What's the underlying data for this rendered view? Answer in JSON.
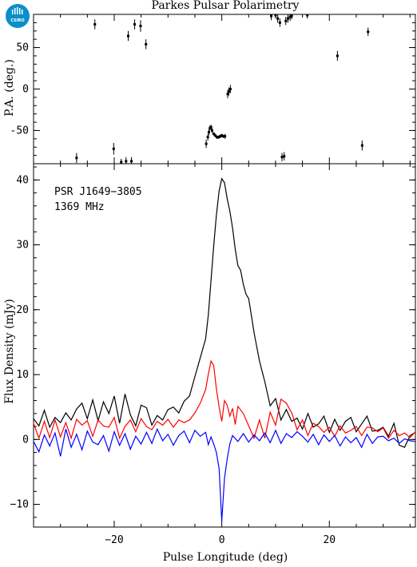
{
  "title": "Parkes Pulsar Polarimetry",
  "logo": {
    "text": "CSIRO",
    "color": "#0a8fc9",
    "icon": "csiro-logo-icon"
  },
  "chart_data": [
    {
      "id": "pa",
      "type": "scatter",
      "ylabel": "P.A. (deg.)",
      "xlim": [
        -35,
        36
      ],
      "ylim": [
        -90,
        90
      ],
      "yticks": [
        -50,
        0,
        50
      ],
      "ytick_labels": [
        "-50",
        "0",
        "50"
      ],
      "xticks": [
        -20,
        0,
        20
      ],
      "error_bar_color": "#000000",
      "points": [
        {
          "x": -27,
          "y": -83,
          "err": 6
        },
        {
          "x": -23.6,
          "y": 78,
          "err": 6
        },
        {
          "x": -20.1,
          "y": -72,
          "err": 7
        },
        {
          "x": -18.7,
          "y": -88,
          "err": 4
        },
        {
          "x": -17.8,
          "y": -87,
          "err": 5
        },
        {
          "x": -17.4,
          "y": 64,
          "err": 6
        },
        {
          "x": -16.8,
          "y": -87,
          "err": 5
        },
        {
          "x": -16.2,
          "y": 78,
          "err": 6
        },
        {
          "x": -15.1,
          "y": 76,
          "err": 7
        },
        {
          "x": -14.1,
          "y": 54,
          "err": 6
        },
        {
          "x": -2.9,
          "y": -66,
          "err": 5
        },
        {
          "x": -2.6,
          "y": -58,
          "err": 4
        },
        {
          "x": -2.4,
          "y": -52,
          "err": 4
        },
        {
          "x": -2.2,
          "y": -47,
          "err": 3
        },
        {
          "x": -2.0,
          "y": -46,
          "err": 3
        },
        {
          "x": -1.8,
          "y": -50,
          "err": 3
        },
        {
          "x": -1.5,
          "y": -54,
          "err": 2
        },
        {
          "x": -1.2,
          "y": -56,
          "err": 2
        },
        {
          "x": -0.9,
          "y": -58,
          "err": 2
        },
        {
          "x": -0.6,
          "y": -58,
          "err": 2
        },
        {
          "x": -0.3,
          "y": -57,
          "err": 2
        },
        {
          "x": 0.0,
          "y": -56,
          "err": 2
        },
        {
          "x": 0.3,
          "y": -57,
          "err": 2
        },
        {
          "x": 0.6,
          "y": -57,
          "err": 3
        },
        {
          "x": 1.1,
          "y": -6,
          "err": 5
        },
        {
          "x": 1.3,
          "y": -3,
          "err": 5
        },
        {
          "x": 1.6,
          "y": 0,
          "err": 5
        },
        {
          "x": 9.2,
          "y": 88,
          "err": 5
        },
        {
          "x": 10.0,
          "y": 89,
          "err": 4
        },
        {
          "x": 10.4,
          "y": 85,
          "err": 5
        },
        {
          "x": 10.8,
          "y": 80,
          "err": 5
        },
        {
          "x": 11.2,
          "y": -82,
          "err": 5
        },
        {
          "x": 11.6,
          "y": -81,
          "err": 5
        },
        {
          "x": 11.9,
          "y": 82,
          "err": 5
        },
        {
          "x": 12.3,
          "y": 85,
          "err": 5
        },
        {
          "x": 12.7,
          "y": 87,
          "err": 5
        },
        {
          "x": 13.0,
          "y": 88,
          "err": 4
        },
        {
          "x": 15.9,
          "y": 89,
          "err": 4
        },
        {
          "x": 21.5,
          "y": 40,
          "err": 6
        },
        {
          "x": 26.1,
          "y": -68,
          "err": 6
        },
        {
          "x": 27.2,
          "y": 69,
          "err": 5
        }
      ]
    },
    {
      "id": "flux",
      "type": "line",
      "xlabel": "Pulse Longitude (deg)",
      "ylabel": "Flux Density (mJy)",
      "xlim": [
        -35,
        36
      ],
      "ylim": [
        -13.5,
        42.5
      ],
      "xticks": [
        -20,
        0,
        20
      ],
      "xtick_labels": [
        "−20",
        "0",
        "20"
      ],
      "yticks": [
        -10,
        0,
        10,
        20,
        30,
        40
      ],
      "ytick_labels": [
        "−10",
        "0",
        "10",
        "20",
        "30",
        "40"
      ],
      "annotations": [
        "PSR J1649−3805",
        "1369 MHz"
      ],
      "series": [
        {
          "color": "#000000",
          "x": [
            -35,
            -34,
            -33,
            -32,
            -31,
            -30,
            -29,
            -28,
            -27,
            -26,
            -25,
            -24,
            -23,
            -22,
            -21,
            -20,
            -19,
            -18,
            -17,
            -16,
            -15,
            -14,
            -13,
            -12,
            -11,
            -10,
            -9,
            -8,
            -7,
            -6,
            -5,
            -4,
            -3,
            -2.5,
            -2,
            -1.5,
            -1,
            -0.5,
            0,
            0.5,
            1,
            1.5,
            2,
            2.5,
            3,
            3.5,
            4,
            4.5,
            5,
            5.5,
            6,
            7,
            8,
            9,
            10,
            11,
            12,
            13,
            14,
            15,
            16,
            17,
            18,
            19,
            20,
            21,
            22,
            23,
            24,
            25,
            26,
            27,
            28,
            29,
            30,
            31,
            32,
            33,
            34,
            35,
            36
          ],
          "y": [
            3.2,
            2.1,
            4.5,
            1.9,
            3.4,
            2.6,
            4.1,
            3.0,
            4.7,
            5.6,
            3.2,
            6.1,
            2.9,
            5.8,
            4.0,
            6.7,
            2.5,
            7.0,
            3.8,
            2.1,
            5.3,
            4.9,
            2.2,
            3.7,
            3.0,
            4.6,
            5.0,
            4.1,
            5.9,
            6.7,
            9.7,
            12.6,
            15.5,
            19.2,
            24.6,
            29.8,
            34.6,
            38.3,
            40.2,
            39.6,
            37.1,
            35.2,
            32.6,
            29.3,
            26.8,
            26.1,
            23.9,
            22.4,
            21.7,
            19.1,
            16.5,
            12.1,
            8.9,
            5.2,
            6.3,
            3.0,
            4.6,
            2.8,
            3.3,
            1.6,
            4.0,
            1.9,
            2.4,
            3.6,
            1.1,
            3.1,
            1.4,
            2.8,
            3.4,
            1.2,
            2.4,
            3.6,
            1.3,
            1.4,
            1.9,
            0.5,
            2.5,
            -0.9,
            -1.2,
            0.6,
            1.1
          ]
        },
        {
          "color": "#ff0000",
          "x": [
            -35,
            -34,
            -33,
            -32,
            -31,
            -30,
            -29,
            -28,
            -27,
            -26,
            -25,
            -24,
            -23,
            -22,
            -21,
            -20,
            -19,
            -18,
            -17,
            -16,
            -15,
            -14,
            -13,
            -12,
            -11,
            -10,
            -9,
            -8,
            -7,
            -6,
            -5,
            -4,
            -3,
            -2.5,
            -2,
            -1.5,
            -1,
            -0.5,
            0,
            0.5,
            1,
            1.5,
            2,
            2.5,
            3,
            4,
            5,
            6,
            7,
            8,
            9,
            10,
            11,
            12,
            13,
            14,
            15,
            16,
            17,
            18,
            19,
            20,
            21,
            22,
            23,
            24,
            25,
            26,
            27,
            28,
            29,
            30,
            31,
            32,
            33,
            34,
            35,
            36
          ],
          "y": [
            2.5,
            0.2,
            2.8,
            0.3,
            3.0,
            0.4,
            2.6,
            0.2,
            3.1,
            2.2,
            2.9,
            0.5,
            3.0,
            2.1,
            1.9,
            3.4,
            0.2,
            2.0,
            3.0,
            1.2,
            3.2,
            2.0,
            1.5,
            2.8,
            2.2,
            3.1,
            1.9,
            3.0,
            2.6,
            3.0,
            4.1,
            5.6,
            7.7,
            10.1,
            12.1,
            11.4,
            7.8,
            5.0,
            2.8,
            6.0,
            5.3,
            3.6,
            4.8,
            2.3,
            5.1,
            4.0,
            2.1,
            0.2,
            3.0,
            0.2,
            4.2,
            2.2,
            6.2,
            5.6,
            4.1,
            1.5,
            3.0,
            0.6,
            2.5,
            2.0,
            1.1,
            1.9,
            0.5,
            2.1,
            1.0,
            1.4,
            2.0,
            0.6,
            1.9,
            1.8,
            1.2,
            1.8,
            0.2,
            1.4,
            0.6,
            1.0,
            0.3,
            1.2
          ]
        },
        {
          "color": "#0000ff",
          "x": [
            -35,
            -34,
            -33,
            -32,
            -31,
            -30,
            -29,
            -28,
            -27,
            -26,
            -25,
            -24,
            -23,
            -22,
            -21,
            -20,
            -19,
            -18,
            -17,
            -16,
            -15,
            -14,
            -13,
            -12,
            -11,
            -10,
            -9,
            -8,
            -7,
            -6,
            -5,
            -4,
            -3,
            -2.5,
            -2,
            -1.5,
            -1,
            -0.5,
            0,
            0.5,
            1,
            1.5,
            2,
            3,
            4,
            5,
            6,
            7,
            8,
            9,
            10,
            11,
            12,
            13,
            14,
            15,
            16,
            17,
            18,
            19,
            20,
            21,
            22,
            23,
            24,
            25,
            26,
            27,
            28,
            29,
            30,
            31,
            32,
            33,
            34,
            35,
            36
          ],
          "y": [
            -0.3,
            -1.9,
            0.7,
            -1.0,
            1.0,
            -2.6,
            1.6,
            -1.2,
            0.8,
            -1.6,
            1.3,
            -0.4,
            -0.8,
            0.6,
            -1.8,
            1.2,
            -0.9,
            0.9,
            -1.5,
            0.5,
            -0.7,
            1.1,
            -0.6,
            1.6,
            -0.2,
            0.8,
            -0.9,
            0.6,
            1.3,
            -0.5,
            1.4,
            0.5,
            1.1,
            -0.8,
            0.4,
            -0.7,
            -2.0,
            -4.5,
            -12.6,
            -6.0,
            -3.0,
            -0.7,
            0.6,
            -0.3,
            0.9,
            -0.4,
            0.7,
            -0.2,
            1.0,
            -0.5,
            1.4,
            -0.6,
            0.9,
            0.3,
            1.2,
            0.5,
            -0.4,
            0.8,
            -0.8,
            0.7,
            -0.3,
            0.6,
            -1.0,
            0.4,
            -0.5,
            0.3,
            -1.2,
            0.8,
            -0.6,
            0.4,
            0.5,
            -0.2,
            0.2,
            -0.6,
            0.1,
            -0.2,
            -0.3
          ]
        }
      ]
    }
  ]
}
